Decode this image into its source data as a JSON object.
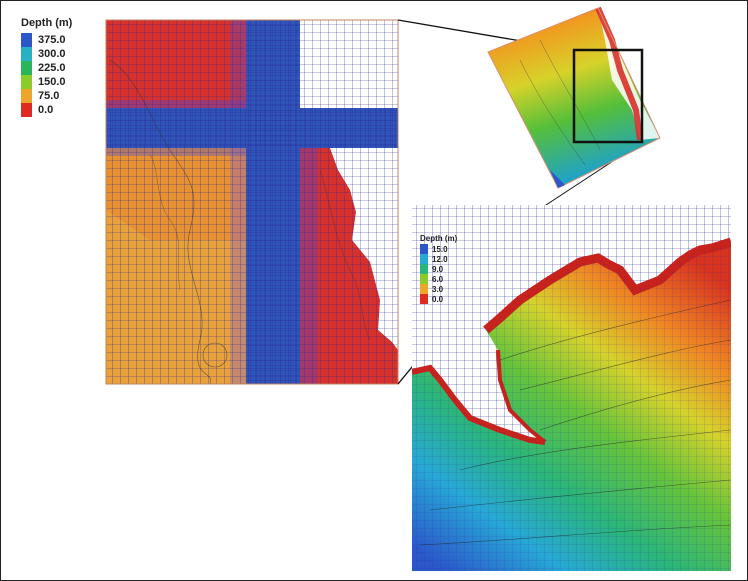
{
  "legend_main": {
    "title": "Depth (m)",
    "entries": [
      {
        "label": "375.0",
        "color": "#2b57c9"
      },
      {
        "label": "300.0",
        "color": "#27b2c4"
      },
      {
        "label": "225.0",
        "color": "#2ab55a"
      },
      {
        "label": "150.0",
        "color": "#8ccc2a"
      },
      {
        "label": "75.0",
        "color": "#eda62a"
      },
      {
        "label": "0.0",
        "color": "#df2a22"
      }
    ]
  },
  "legend_inset": {
    "title": "Depth (m)",
    "entries": [
      {
        "label": "15.0",
        "color": "#2b57c9"
      },
      {
        "label": "12.0",
        "color": "#27a8d6"
      },
      {
        "label": "9.0",
        "color": "#2ab57e"
      },
      {
        "label": "6.0",
        "color": "#8ccc2a"
      },
      {
        "label": "3.0",
        "color": "#eda62a"
      },
      {
        "label": "0.0",
        "color": "#df2a22"
      }
    ]
  },
  "colors": {
    "grid_line": "#3a3aa8",
    "deep_blue": "#2f55b8",
    "shallow_red": "#d93025",
    "mid_orange": "#e9a23a"
  }
}
